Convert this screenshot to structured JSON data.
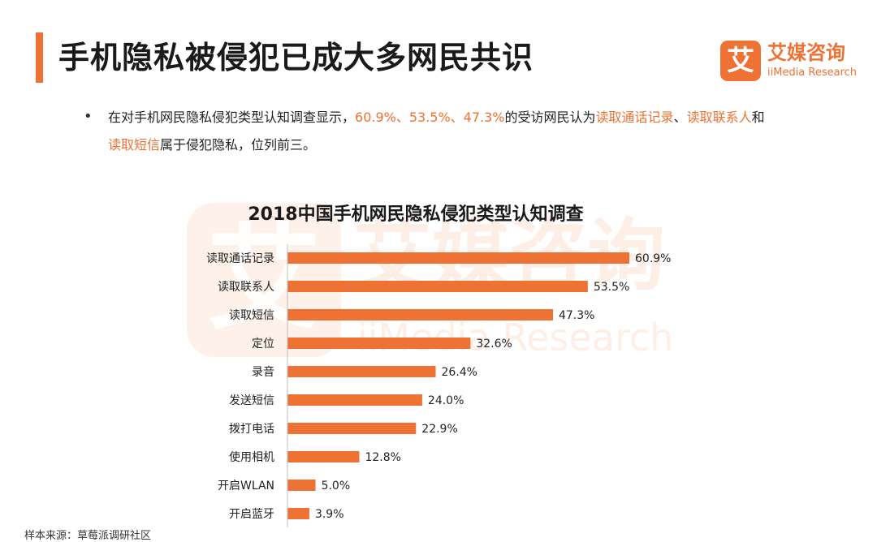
{
  "header": {
    "title": "手机隐私被侵犯已成大多网民共识"
  },
  "logo": {
    "mark": "艾",
    "name_cn": "艾媒咨询",
    "name_en": "iiMedia Research"
  },
  "summary": {
    "bullet": "•",
    "parts": [
      {
        "text": "在对手机网民隐私侵犯类型认知调查显示，",
        "highlight": false
      },
      {
        "text": "60.9%、53.5%、47.3%",
        "highlight": true
      },
      {
        "text": "的受访网民认为",
        "highlight": false
      },
      {
        "text": "读取通话记录",
        "highlight": true
      },
      {
        "text": "、",
        "highlight": false
      },
      {
        "text": "读取联系人",
        "highlight": true
      },
      {
        "text": "和",
        "highlight": false
      },
      {
        "text": "读取短信",
        "highlight": true
      },
      {
        "text": "属于侵犯隐私，位列前三。",
        "highlight": false
      }
    ]
  },
  "watermark": {
    "mark": "艾",
    "name_cn": "艾媒咨询",
    "name_en": "iiMedia Research"
  },
  "chart_data": {
    "type": "bar",
    "orientation": "horizontal",
    "title": "2018中国手机网民隐私侵犯类型认知调查",
    "categories": [
      "读取通话记录",
      "读取联系人",
      "读取短信",
      "定位",
      "录音",
      "发送短信",
      "拨打电话",
      "使用相机",
      "开启WLAN",
      "开启蓝牙"
    ],
    "values": [
      60.9,
      53.5,
      47.3,
      32.6,
      26.4,
      24.0,
      22.9,
      12.8,
      5.0,
      3.9
    ],
    "value_labels": [
      "60.9%",
      "53.5%",
      "47.3%",
      "32.6%",
      "26.4%",
      "24.0%",
      "22.9%",
      "12.8%",
      "5.0%",
      "3.9%"
    ],
    "xlim": [
      0,
      60.9
    ],
    "grid": false,
    "bar_color": "#ee7233"
  },
  "colors": {
    "accent": "#ee7233"
  },
  "footer": {
    "source": "样本来源：草莓派调研社区"
  }
}
